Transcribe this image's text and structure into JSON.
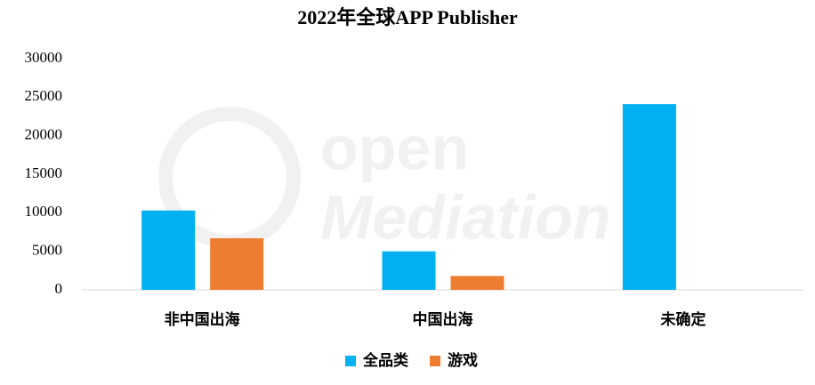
{
  "chart_data": {
    "type": "bar",
    "title": "2022年全球APP Publisher",
    "watermark": [
      "open",
      "Mediation"
    ],
    "categories": [
      "非中国出海",
      "中国出海",
      "未确定"
    ],
    "series": [
      {
        "name": "全品类",
        "color": "#00b0f0",
        "values": [
          10300,
          5000,
          24100
        ]
      },
      {
        "name": "游戏",
        "color": "#ed7d31",
        "values": [
          6700,
          1800,
          null
        ]
      }
    ],
    "ylim": [
      0,
      30000
    ],
    "yticks": [
      0,
      5000,
      10000,
      15000,
      20000,
      25000,
      30000
    ],
    "grid": false
  }
}
